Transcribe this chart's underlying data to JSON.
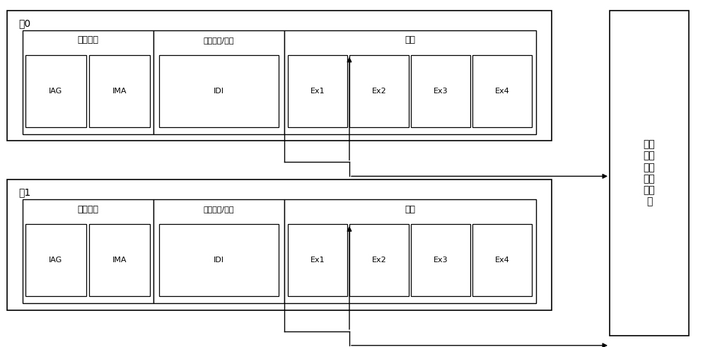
{
  "bg_color": "#ffffff",
  "border_color": "#000000",
  "text_color": "#000000",
  "core0_label": "核0",
  "core1_label": "核1",
  "fetch_label": "指令获取",
  "decode_label": "指令译码/发射",
  "exec_label": "执行",
  "iag_label": "IAG",
  "ima_label": "IMA",
  "idi_label": "IDI",
  "ex_labels": [
    "Ex1",
    "Ex2",
    "Ex3",
    "Ex4"
  ],
  "sync_label": "同步\n信息\n收集\n和传\n递模\n块",
  "figw": 9.94,
  "figh": 4.91,
  "dpi": 100
}
